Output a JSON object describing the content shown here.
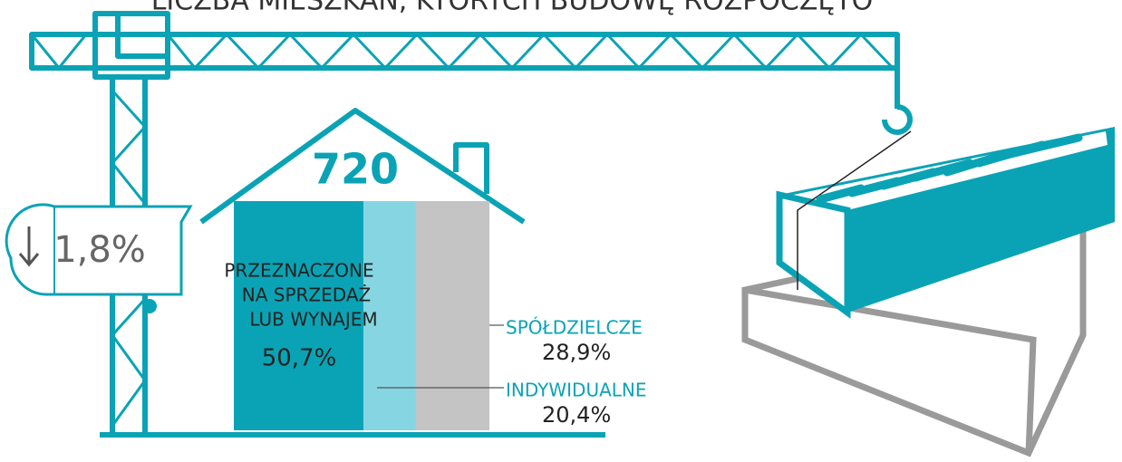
{
  "title": "LICZBA MIESZKAŃ, KTÓRYCH BUDOWĘ ROZPOCZĘTO",
  "total": "720",
  "change": "1,8%",
  "segments": [
    {
      "label_lines": [
        "PRZEZNACZONE",
        "NA SPRZEDAŻ",
        "LUB WYNAJEM"
      ],
      "value": 50.7,
      "value_label": "50,7%",
      "color": "#0aa3b5"
    },
    {
      "label_lines": [
        "INDYWIDUALNE"
      ],
      "value": 20.4,
      "value_label": "20,4%",
      "color": "#85d6e2"
    },
    {
      "label_lines": [
        "SPÓŁDZIELCZE"
      ],
      "value": 28.9,
      "value_label": "28,9%",
      "color": "#c4c4c4"
    }
  ]
}
